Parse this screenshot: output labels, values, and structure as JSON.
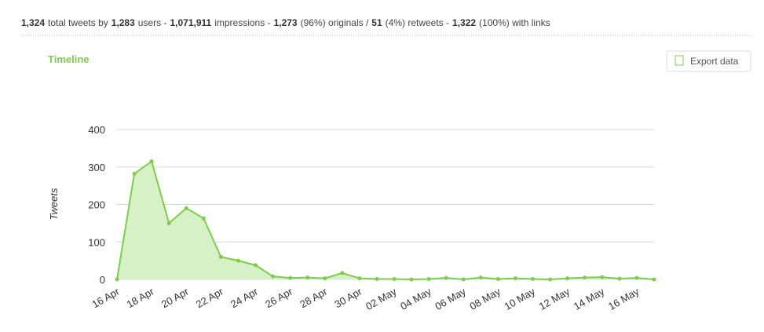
{
  "header": {
    "summary": [
      {
        "value": "1,324",
        "text": "total tweets by"
      },
      {
        "value": "1,283",
        "text": "users -"
      },
      {
        "value": "1,071,911",
        "text": "impressions -"
      },
      {
        "value": "1,273",
        "text": "(96%) originals /"
      },
      {
        "value": "51",
        "text": "(4%) retweets -"
      },
      {
        "value": "1,322",
        "text": "(100%) with links"
      }
    ],
    "button": "Export data"
  },
  "chart_data": {
    "type": "area",
    "title": "Timeline",
    "y_label": "Tweets",
    "categories": [
      "16 Apr",
      null,
      "18 Apr",
      null,
      "20 Apr",
      null,
      "22 Apr",
      null,
      "24 Apr",
      null,
      "26 Apr",
      null,
      "28 Apr",
      null,
      "30 Apr",
      null,
      "02 May",
      null,
      "04 May",
      null,
      "06 May",
      null,
      "08 May",
      null,
      "10 May",
      null,
      "12 May",
      null,
      "14 May",
      null,
      "16 May",
      null
    ],
    "values": [
      0,
      282,
      315,
      150,
      190,
      163,
      60,
      50,
      38,
      8,
      4,
      5,
      3,
      17,
      3,
      1,
      1,
      0,
      1,
      4,
      0,
      5,
      1,
      3,
      1,
      0,
      3,
      5,
      6,
      2,
      4,
      0
    ],
    "color": "#7ccd4b",
    "fill": "#d6f1c6",
    "ylim": [
      0,
      400
    ],
    "yticks": [
      0,
      100,
      200,
      300,
      400
    ],
    "grid": true
  }
}
